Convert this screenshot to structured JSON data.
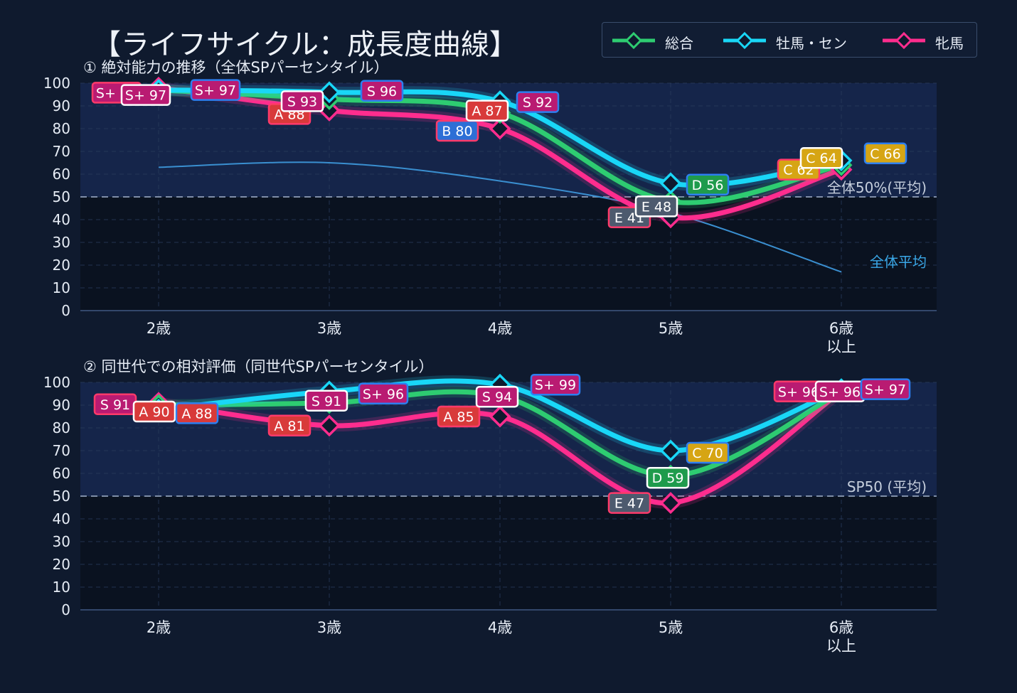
{
  "title": "【ライフサイクル：成長度曲線】",
  "legend": [
    {
      "label": "総合",
      "color": "#2ecc71"
    },
    {
      "label": "牡馬・セン",
      "color": "#19d7f7"
    },
    {
      "label": "牝馬",
      "color": "#ff2d8e"
    }
  ],
  "grade_colors": {
    "S+": "#b91b72",
    "S": "#b91b72",
    "A": "#d83a3a",
    "B": "#2d6fd6",
    "C": "#d6a514",
    "D": "#1f9b4c",
    "E": "#4d5a6e"
  },
  "chart_data": [
    {
      "type": "line",
      "title": "① 絶対能力の推移（全体SPパーセンタイル）",
      "categories": [
        "2歳",
        "3歳",
        "4歳",
        "5歳",
        "6歳\n以上"
      ],
      "ylim": [
        0,
        100
      ],
      "yticks": [
        0,
        10,
        20,
        30,
        40,
        50,
        60,
        70,
        80,
        90,
        100
      ],
      "grid": true,
      "reference_line": {
        "value": 50,
        "label": "全体50%(平均)"
      },
      "average": {
        "label": "全体平均",
        "x": [
          0,
          1,
          2,
          3,
          4
        ],
        "values": [
          63,
          65,
          57,
          43,
          17
        ]
      },
      "series": [
        {
          "name": "総合",
          "values": [
            97,
            93,
            87,
            48,
            64
          ],
          "labels": [
            "S+ 97",
            "S 93",
            "A 87",
            "E 48",
            "C 64"
          ]
        },
        {
          "name": "牡馬・セン",
          "values": [
            97,
            96,
            92,
            56,
            66
          ],
          "labels": [
            "S+ 97",
            "S 96",
            "S 92",
            "D 56",
            "C 66"
          ]
        },
        {
          "name": "牝馬",
          "values": [
            98,
            88,
            80,
            41,
            62
          ],
          "labels": [
            "S+ 98",
            "A 88",
            "B 80",
            "E 41",
            "C 62"
          ]
        }
      ]
    },
    {
      "type": "line",
      "title": "② 同世代での相対評価（同世代SPパーセンタイル）",
      "categories": [
        "2歳",
        "3歳",
        "4歳",
        "5歳",
        "6歳\n以上"
      ],
      "ylim": [
        0,
        100
      ],
      "yticks": [
        0,
        10,
        20,
        30,
        40,
        50,
        60,
        70,
        80,
        90,
        100
      ],
      "grid": true,
      "reference_line": {
        "value": 50,
        "label": "SP50 (平均)"
      },
      "series": [
        {
          "name": "総合",
          "values": [
            90,
            91,
            94,
            59,
            96
          ],
          "labels": [
            "A 90",
            "S 91",
            "S 94",
            "D 59",
            "S+ 96"
          ]
        },
        {
          "name": "牡馬・セン",
          "values": [
            88,
            96,
            99,
            70,
            97
          ],
          "labels": [
            "A 88",
            "S+ 96",
            "S+ 99",
            "C 70",
            "S+ 97"
          ]
        },
        {
          "name": "牝馬",
          "values": [
            91,
            81,
            85,
            47,
            96
          ],
          "labels": [
            "S 91",
            "A 81",
            "A 85",
            "E 47",
            "S+ 96"
          ]
        }
      ]
    }
  ]
}
